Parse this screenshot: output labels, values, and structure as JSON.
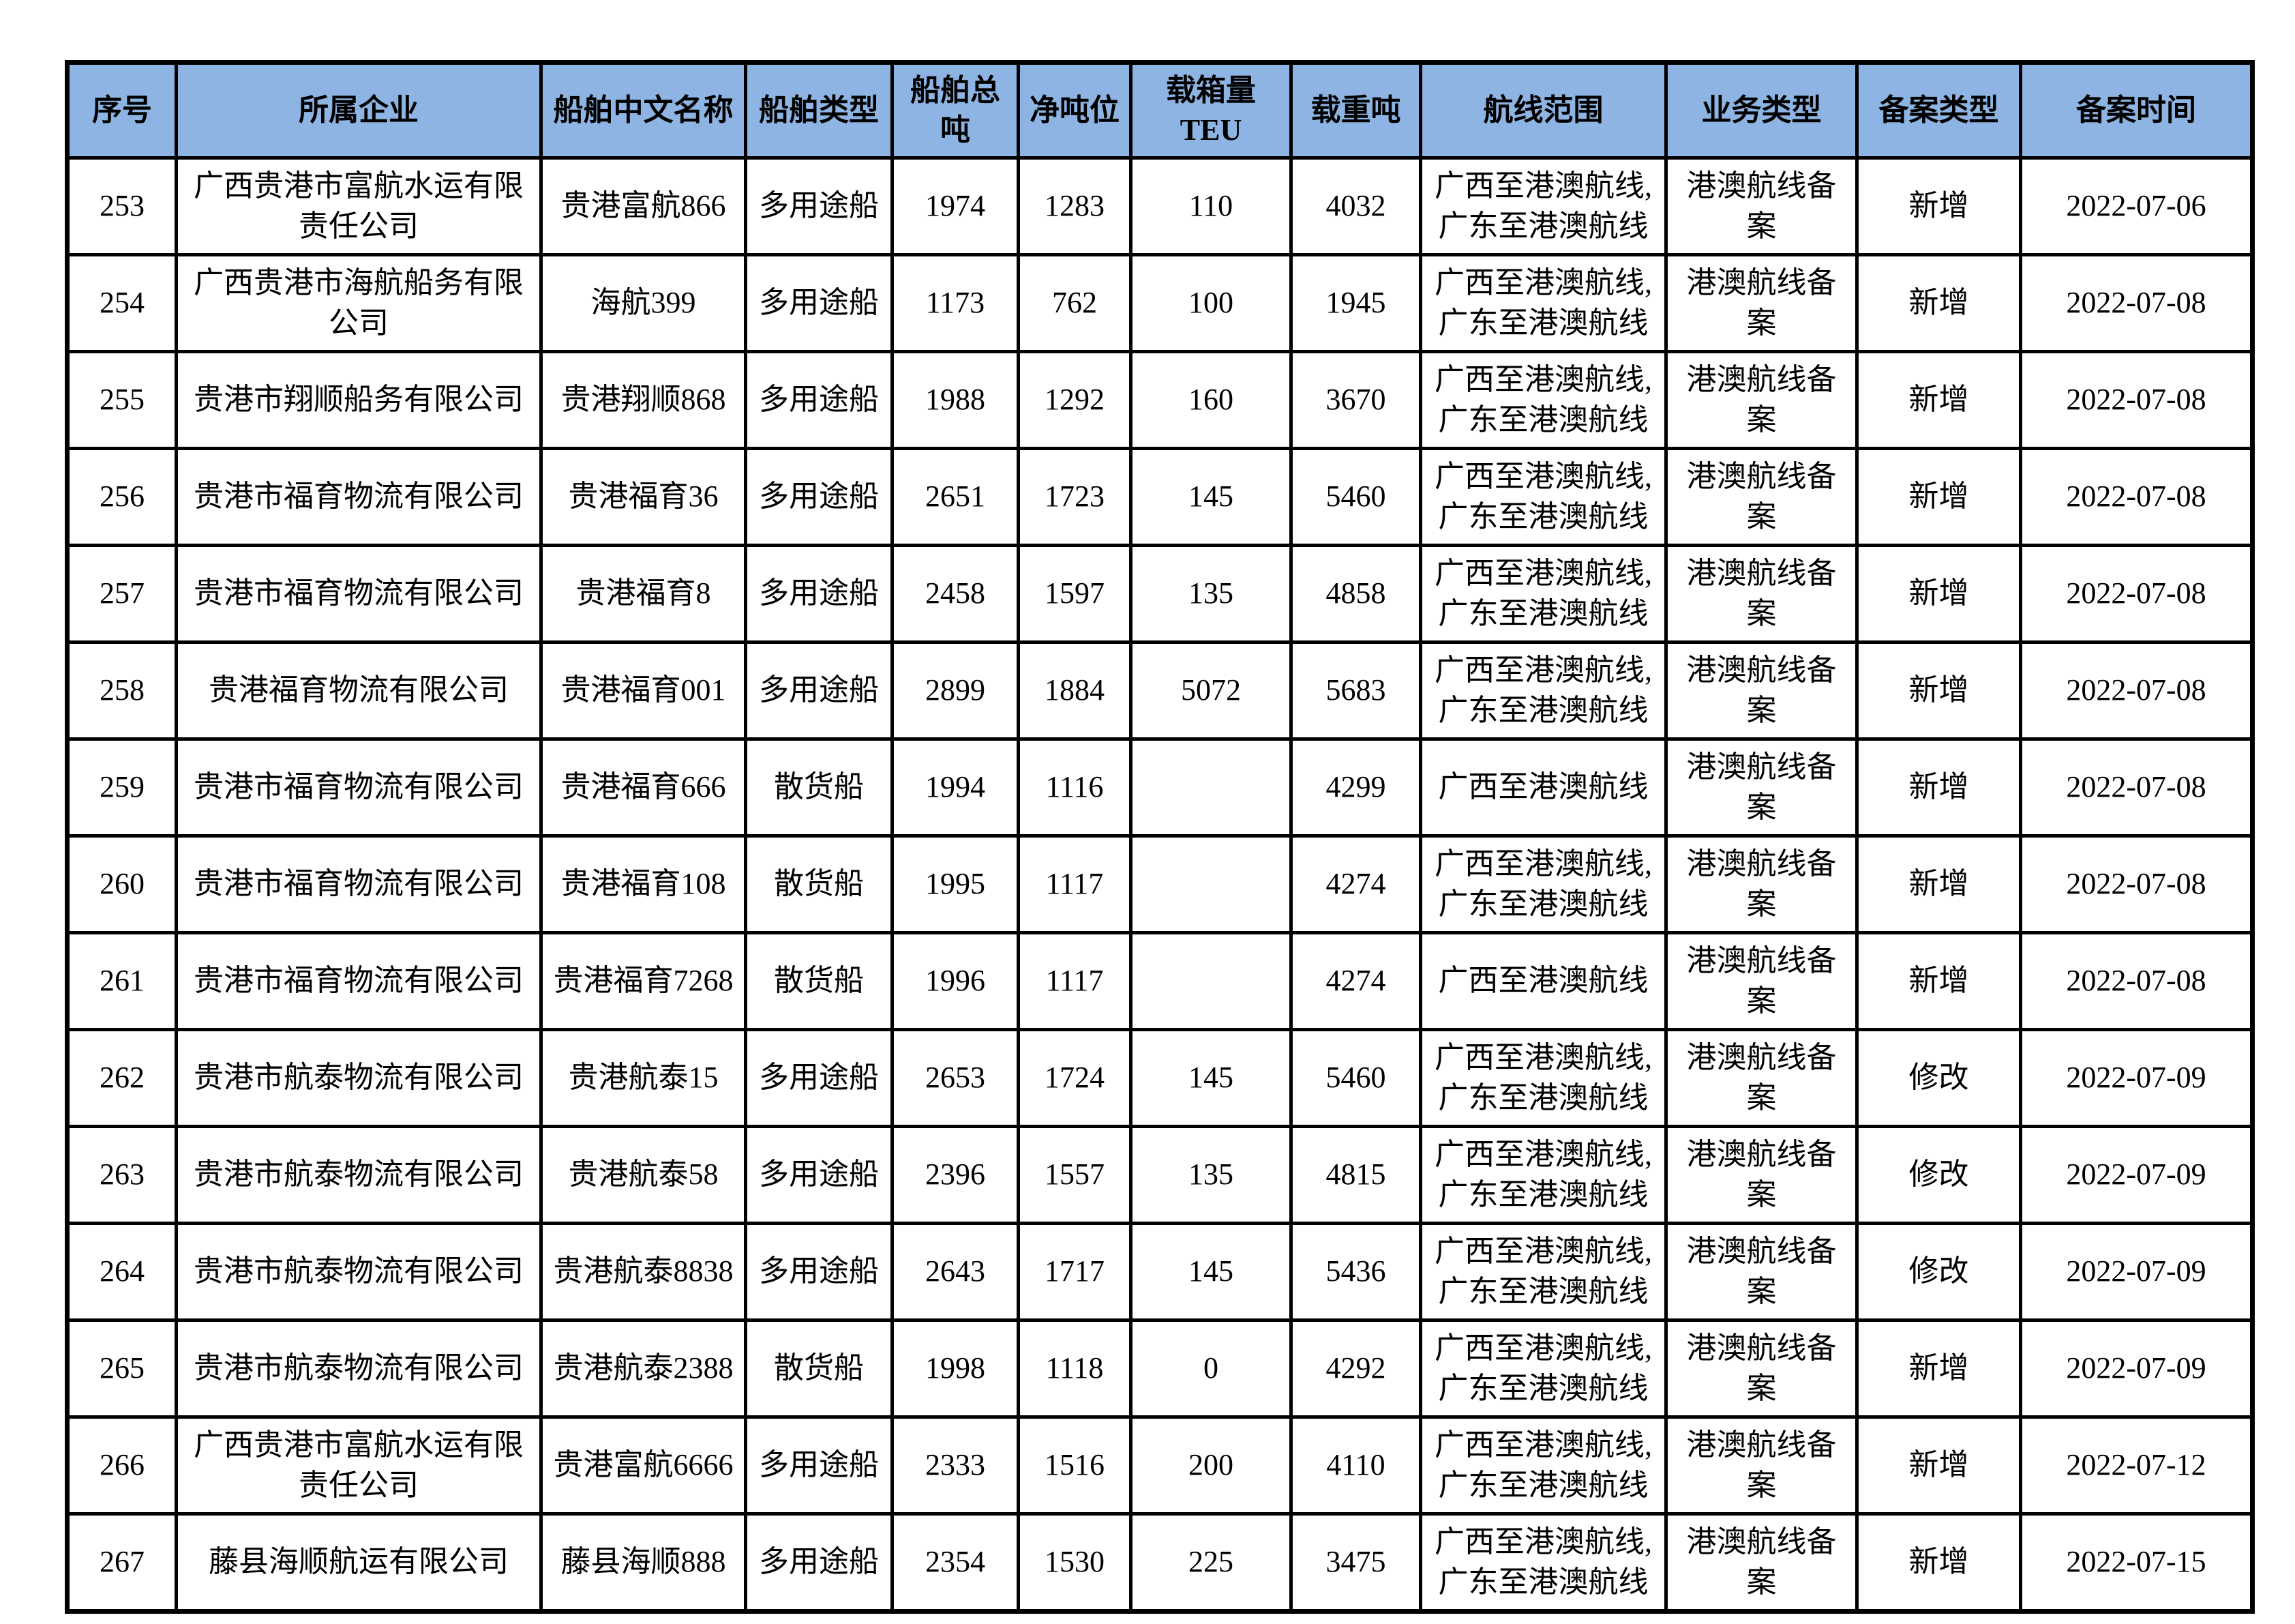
{
  "colors": {
    "header_bg": "#8db4e2",
    "border": "#000000",
    "text": "#000000",
    "page_bg": "#ffffff"
  },
  "table": {
    "headers": [
      "序号",
      "所属企业",
      "船舶中文名称",
      "船舶类型",
      "船舶总吨",
      "净吨位",
      "载箱量TEU",
      "载重吨",
      "航线范围",
      "业务类型",
      "备案类型",
      "备案时间"
    ],
    "rows": [
      [
        "253",
        "广西贵港市富航水运有限责任公司",
        "贵港富航866",
        "多用途船",
        "1974",
        "1283",
        "110",
        "4032",
        "广西至港澳航线,\n广东至港澳航线",
        "港澳航线备案",
        "新增",
        "2022-07-06"
      ],
      [
        "254",
        "广西贵港市海航船务有限公司",
        "海航399",
        "多用途船",
        "1173",
        "762",
        "100",
        "1945",
        "广西至港澳航线,\n广东至港澳航线",
        "港澳航线备案",
        "新增",
        "2022-07-08"
      ],
      [
        "255",
        "贵港市翔顺船务有限公司",
        "贵港翔顺868",
        "多用途船",
        "1988",
        "1292",
        "160",
        "3670",
        "广西至港澳航线,\n广东至港澳航线",
        "港澳航线备案",
        "新增",
        "2022-07-08"
      ],
      [
        "256",
        "贵港市福育物流有限公司",
        "贵港福育36",
        "多用途船",
        "2651",
        "1723",
        "145",
        "5460",
        "广西至港澳航线,\n广东至港澳航线",
        "港澳航线备案",
        "新增",
        "2022-07-08"
      ],
      [
        "257",
        "贵港市福育物流有限公司",
        "贵港福育8",
        "多用途船",
        "2458",
        "1597",
        "135",
        "4858",
        "广西至港澳航线,\n广东至港澳航线",
        "港澳航线备案",
        "新增",
        "2022-07-08"
      ],
      [
        "258",
        "贵港福育物流有限公司",
        "贵港福育001",
        "多用途船",
        "2899",
        "1884",
        "5072",
        "5683",
        "广西至港澳航线,\n广东至港澳航线",
        "港澳航线备案",
        "新增",
        "2022-07-08"
      ],
      [
        "259",
        "贵港市福育物流有限公司",
        "贵港福育666",
        "散货船",
        "1994",
        "1116",
        "",
        "4299",
        "广西至港澳航线",
        "港澳航线备案",
        "新增",
        "2022-07-08"
      ],
      [
        "260",
        "贵港市福育物流有限公司",
        "贵港福育108",
        "散货船",
        "1995",
        "1117",
        "",
        "4274",
        "广西至港澳航线,\n广东至港澳航线",
        "港澳航线备案",
        "新增",
        "2022-07-08"
      ],
      [
        "261",
        "贵港市福育物流有限公司",
        "贵港福育7268",
        "散货船",
        "1996",
        "1117",
        "",
        "4274",
        "广西至港澳航线",
        "港澳航线备案",
        "新增",
        "2022-07-08"
      ],
      [
        "262",
        "贵港市航泰物流有限公司",
        "贵港航泰15",
        "多用途船",
        "2653",
        "1724",
        "145",
        "5460",
        "广西至港澳航线,\n广东至港澳航线",
        "港澳航线备案",
        "修改",
        "2022-07-09"
      ],
      [
        "263",
        "贵港市航泰物流有限公司",
        "贵港航泰58",
        "多用途船",
        "2396",
        "1557",
        "135",
        "4815",
        "广西至港澳航线,\n广东至港澳航线",
        "港澳航线备案",
        "修改",
        "2022-07-09"
      ],
      [
        "264",
        "贵港市航泰物流有限公司",
        "贵港航泰8838",
        "多用途船",
        "2643",
        "1717",
        "145",
        "5436",
        "广西至港澳航线,\n广东至港澳航线",
        "港澳航线备案",
        "修改",
        "2022-07-09"
      ],
      [
        "265",
        "贵港市航泰物流有限公司",
        "贵港航泰2388",
        "散货船",
        "1998",
        "1118",
        "0",
        "4292",
        "广西至港澳航线,\n广东至港澳航线",
        "港澳航线备案",
        "新增",
        "2022-07-09"
      ],
      [
        "266",
        "广西贵港市富航水运有限责任公司",
        "贵港富航6666",
        "多用途船",
        "2333",
        "1516",
        "200",
        "4110",
        "广西至港澳航线,\n广东至港澳航线",
        "港澳航线备案",
        "新增",
        "2022-07-12"
      ],
      [
        "267",
        "藤县海顺航运有限公司",
        "藤县海顺888",
        "多用途船",
        "2354",
        "1530",
        "225",
        "3475",
        "广西至港澳航线,\n广东至港澳航线",
        "港澳航线备案",
        "新增",
        "2022-07-15"
      ]
    ]
  }
}
